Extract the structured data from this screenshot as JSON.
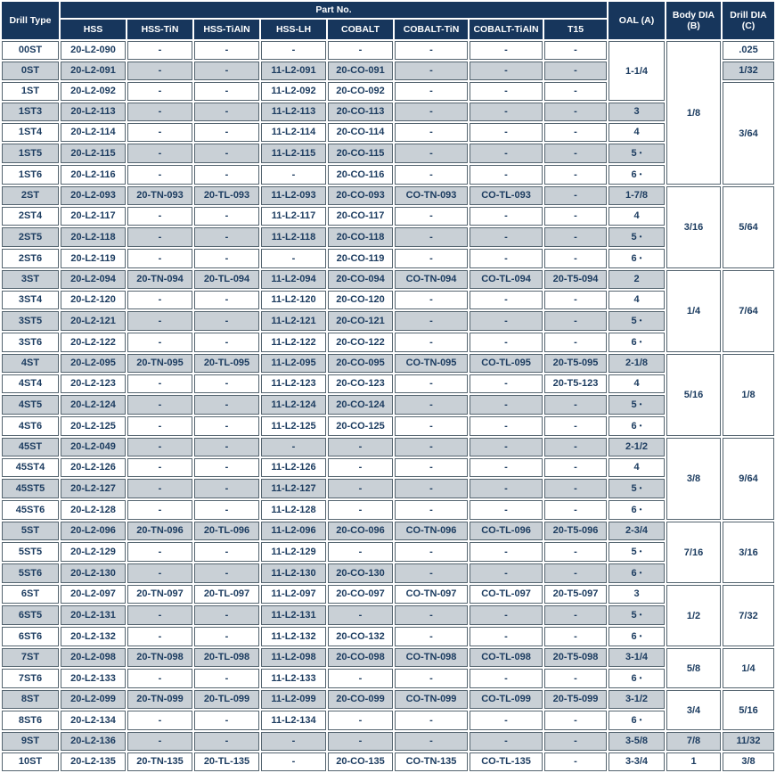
{
  "colors": {
    "header_bg": "#17365c",
    "text_navy": "#1c3c60",
    "row_stripe": "#c9d0d6",
    "cell_border": "#54646f",
    "merged_bg": "#ffffff"
  },
  "glyphs": {
    "bullet": "•",
    "dash": "-"
  },
  "header": {
    "drill_type": "Drill Type",
    "part_no": "Part No.",
    "part_columns": [
      "HSS",
      "HSS-TiN",
      "HSS-TiAlN",
      "HSS-LH",
      "COBALT",
      "COBALT-TiN",
      "COBALT-TiAlN",
      "T15"
    ],
    "oal": "OAL (A)",
    "body_dia_line1": "Body DIA",
    "body_dia_line2": "(B)",
    "drill_dia_line1": "Drill DIA",
    "drill_dia_line2": "(C)"
  },
  "rows": [
    {
      "t": "00ST",
      "p": [
        "20-L2-090",
        "-",
        "-",
        "-",
        "-",
        "-",
        "-",
        "-"
      ],
      "oal": {
        "v": "1-1/4",
        "span": 3
      },
      "body": {
        "v": "1/8",
        "span": 7
      },
      "drill": {
        "v": ".025",
        "span": 1
      }
    },
    {
      "t": "0ST",
      "p": [
        "20-L2-091",
        "-",
        "-",
        "11-L2-091",
        "20-CO-091",
        "-",
        "-",
        "-"
      ],
      "drill": {
        "v": "1/32",
        "span": 1
      }
    },
    {
      "t": "1ST",
      "p": [
        "20-L2-092",
        "-",
        "-",
        "11-L2-092",
        "20-CO-092",
        "-",
        "-",
        "-"
      ],
      "drill": {
        "v": "3/64",
        "span": 5
      }
    },
    {
      "t": "1ST3",
      "p": [
        "20-L2-113",
        "-",
        "-",
        "11-L2-113",
        "20-CO-113",
        "-",
        "-",
        "-"
      ],
      "oal": {
        "v": "3",
        "span": 1
      }
    },
    {
      "t": "1ST4",
      "p": [
        "20-L2-114",
        "-",
        "-",
        "11-L2-114",
        "20-CO-114",
        "-",
        "-",
        "-"
      ],
      "oal": {
        "v": "4",
        "span": 1
      }
    },
    {
      "t": "1ST5",
      "p": [
        "20-L2-115",
        "-",
        "-",
        "11-L2-115",
        "20-CO-115",
        "-",
        "-",
        "-"
      ],
      "oal": {
        "v": "5",
        "span": 1,
        "b": true
      }
    },
    {
      "t": "1ST6",
      "p": [
        "20-L2-116",
        "-",
        "-",
        "-",
        "20-CO-116",
        "-",
        "-",
        "-"
      ],
      "oal": {
        "v": "6",
        "span": 1,
        "b": true
      }
    },
    {
      "t": "2ST",
      "p": [
        "20-L2-093",
        "20-TN-093",
        "20-TL-093",
        "11-L2-093",
        "20-CO-093",
        "CO-TN-093",
        "CO-TL-093",
        "-"
      ],
      "oal": {
        "v": "1-7/8",
        "span": 1
      },
      "body": {
        "v": "3/16",
        "span": 4
      },
      "drill": {
        "v": "5/64",
        "span": 4
      }
    },
    {
      "t": "2ST4",
      "p": [
        "20-L2-117",
        "-",
        "-",
        "11-L2-117",
        "20-CO-117",
        "-",
        "-",
        "-"
      ],
      "oal": {
        "v": "4",
        "span": 1
      }
    },
    {
      "t": "2ST5",
      "p": [
        "20-L2-118",
        "-",
        "-",
        "11-L2-118",
        "20-CO-118",
        "-",
        "-",
        "-"
      ],
      "oal": {
        "v": "5",
        "span": 1,
        "b": true
      }
    },
    {
      "t": "2ST6",
      "p": [
        "20-L2-119",
        "-",
        "-",
        "-",
        "20-CO-119",
        "-",
        "-",
        "-"
      ],
      "oal": {
        "v": "6",
        "span": 1,
        "b": true
      }
    },
    {
      "t": "3ST",
      "p": [
        "20-L2-094",
        "20-TN-094",
        "20-TL-094",
        "11-L2-094",
        "20-CO-094",
        "CO-TN-094",
        "CO-TL-094",
        "20-T5-094"
      ],
      "oal": {
        "v": "2",
        "span": 1
      },
      "body": {
        "v": "1/4",
        "span": 4
      },
      "drill": {
        "v": "7/64",
        "span": 4
      }
    },
    {
      "t": "3ST4",
      "p": [
        "20-L2-120",
        "-",
        "-",
        "11-L2-120",
        "20-CO-120",
        "-",
        "-",
        "-"
      ],
      "oal": {
        "v": "4",
        "span": 1
      }
    },
    {
      "t": "3ST5",
      "p": [
        "20-L2-121",
        "-",
        "-",
        "11-L2-121",
        "20-CO-121",
        "-",
        "-",
        "-"
      ],
      "oal": {
        "v": "5",
        "span": 1,
        "b": true
      }
    },
    {
      "t": "3ST6",
      "p": [
        "20-L2-122",
        "-",
        "-",
        "11-L2-122",
        "20-CO-122",
        "-",
        "-",
        "-"
      ],
      "oal": {
        "v": "6",
        "span": 1,
        "b": true
      }
    },
    {
      "t": "4ST",
      "p": [
        "20-L2-095",
        "20-TN-095",
        "20-TL-095",
        "11-L2-095",
        "20-CO-095",
        "CO-TN-095",
        "CO-TL-095",
        "20-T5-095"
      ],
      "oal": {
        "v": "2-1/8",
        "span": 1
      },
      "body": {
        "v": "5/16",
        "span": 4
      },
      "drill": {
        "v": "1/8",
        "span": 4
      }
    },
    {
      "t": "4ST4",
      "p": [
        "20-L2-123",
        "-",
        "-",
        "11-L2-123",
        "20-CO-123",
        "-",
        "-",
        "20-T5-123"
      ],
      "oal": {
        "v": "4",
        "span": 1
      }
    },
    {
      "t": "4ST5",
      "p": [
        "20-L2-124",
        "-",
        "-",
        "11-L2-124",
        "20-CO-124",
        "-",
        "-",
        "-"
      ],
      "oal": {
        "v": "5",
        "span": 1,
        "b": true
      }
    },
    {
      "t": "4ST6",
      "p": [
        "20-L2-125",
        "-",
        "-",
        "11-L2-125",
        "20-CO-125",
        "-",
        "-",
        "-"
      ],
      "oal": {
        "v": "6",
        "span": 1,
        "b": true
      }
    },
    {
      "t": "45ST",
      "p": [
        "20-L2-049",
        "-",
        "-",
        "-",
        "-",
        "-",
        "-",
        "-"
      ],
      "oal": {
        "v": "2-1/2",
        "span": 1
      },
      "body": {
        "v": "3/8",
        "span": 4
      },
      "drill": {
        "v": "9/64",
        "span": 4
      }
    },
    {
      "t": "45ST4",
      "p": [
        "20-L2-126",
        "-",
        "-",
        "11-L2-126",
        "-",
        "-",
        "-",
        "-"
      ],
      "oal": {
        "v": "4",
        "span": 1
      }
    },
    {
      "t": "45ST5",
      "p": [
        "20-L2-127",
        "-",
        "-",
        "11-L2-127",
        "-",
        "-",
        "-",
        "-"
      ],
      "oal": {
        "v": "5",
        "span": 1,
        "b": true
      }
    },
    {
      "t": "45ST6",
      "p": [
        "20-L2-128",
        "-",
        "-",
        "11-L2-128",
        "-",
        "-",
        "-",
        "-"
      ],
      "oal": {
        "v": "6",
        "span": 1,
        "b": true
      }
    },
    {
      "t": "5ST",
      "p": [
        "20-L2-096",
        "20-TN-096",
        "20-TL-096",
        "11-L2-096",
        "20-CO-096",
        "CO-TN-096",
        "CO-TL-096",
        "20-T5-096"
      ],
      "oal": {
        "v": "2-3/4",
        "span": 1
      },
      "body": {
        "v": "7/16",
        "span": 3
      },
      "drill": {
        "v": "3/16",
        "span": 3
      }
    },
    {
      "t": "5ST5",
      "p": [
        "20-L2-129",
        "-",
        "-",
        "11-L2-129",
        "-",
        "-",
        "-",
        "-"
      ],
      "oal": {
        "v": "5",
        "span": 1,
        "b": true
      }
    },
    {
      "t": "5ST6",
      "p": [
        "20-L2-130",
        "-",
        "-",
        "11-L2-130",
        "20-CO-130",
        "-",
        "-",
        "-"
      ],
      "oal": {
        "v": "6",
        "span": 1,
        "b": true
      }
    },
    {
      "t": "6ST",
      "p": [
        "20-L2-097",
        "20-TN-097",
        "20-TL-097",
        "11-L2-097",
        "20-CO-097",
        "CO-TN-097",
        "CO-TL-097",
        "20-T5-097"
      ],
      "oal": {
        "v": "3",
        "span": 1
      },
      "body": {
        "v": "1/2",
        "span": 3
      },
      "drill": {
        "v": "7/32",
        "span": 3
      }
    },
    {
      "t": "6ST5",
      "p": [
        "20-L2-131",
        "-",
        "-",
        "11-L2-131",
        "-",
        "-",
        "-",
        "-"
      ],
      "oal": {
        "v": "5",
        "span": 1,
        "b": true
      }
    },
    {
      "t": "6ST6",
      "p": [
        "20-L2-132",
        "-",
        "-",
        "11-L2-132",
        "20-CO-132",
        "-",
        "-",
        "-"
      ],
      "oal": {
        "v": "6",
        "span": 1,
        "b": true
      }
    },
    {
      "t": "7ST",
      "p": [
        "20-L2-098",
        "20-TN-098",
        "20-TL-098",
        "11-L2-098",
        "20-CO-098",
        "CO-TN-098",
        "CO-TL-098",
        "20-T5-098"
      ],
      "oal": {
        "v": "3-1/4",
        "span": 1
      },
      "body": {
        "v": "5/8",
        "span": 2
      },
      "drill": {
        "v": "1/4",
        "span": 2
      }
    },
    {
      "t": "7ST6",
      "p": [
        "20-L2-133",
        "-",
        "-",
        "11-L2-133",
        "-",
        "-",
        "-",
        "-"
      ],
      "oal": {
        "v": "6",
        "span": 1,
        "b": true
      }
    },
    {
      "t": "8ST",
      "p": [
        "20-L2-099",
        "20-TN-099",
        "20-TL-099",
        "11-L2-099",
        "20-CO-099",
        "CO-TN-099",
        "CO-TL-099",
        "20-T5-099"
      ],
      "oal": {
        "v": "3-1/2",
        "span": 1
      },
      "body": {
        "v": "3/4",
        "span": 2
      },
      "drill": {
        "v": "5/16",
        "span": 2
      }
    },
    {
      "t": "8ST6",
      "p": [
        "20-L2-134",
        "-",
        "-",
        "11-L2-134",
        "-",
        "-",
        "-",
        "-"
      ],
      "oal": {
        "v": "6",
        "span": 1,
        "b": true
      }
    },
    {
      "t": "9ST",
      "p": [
        "20-L2-136",
        "-",
        "-",
        "-",
        "-",
        "-",
        "-",
        "-"
      ],
      "oal": {
        "v": "3-5/8",
        "span": 1
      },
      "body": {
        "v": "7/8",
        "span": 1
      },
      "drill": {
        "v": "11/32",
        "span": 1
      }
    },
    {
      "t": "10ST",
      "p": [
        "20-L2-135",
        "20-TN-135",
        "20-TL-135",
        "-",
        "20-CO-135",
        "CO-TN-135",
        "CO-TL-135",
        "-"
      ],
      "oal": {
        "v": "3-3/4",
        "span": 1
      },
      "body": {
        "v": "1",
        "span": 1
      },
      "drill": {
        "v": "3/8",
        "span": 1
      }
    }
  ]
}
